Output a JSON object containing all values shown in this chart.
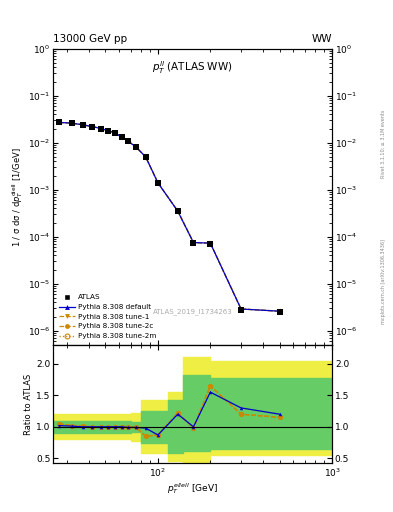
{
  "title_top": "13000 GeV pp",
  "title_right": "WW",
  "plot_title": "$p_T^{ll}$ (ATLAS WW)",
  "xlabel": "$p_T^{ellell}$ [GeV]",
  "ylabel_main": "1 / σ dσ / d$p_T^{\\mathrm{diell}}$ [1/GeV]",
  "ylabel_ratio": "Ratio to ATLAS",
  "watermark": "ATLAS_2019_I1734263",
  "right_label": "Rivet 3.1.10; ≥ 3.1M events",
  "right_label2": "mcplots.cern.ch [arXiv:1306.3436]",
  "xlim": [
    25,
    1000
  ],
  "ylim_main": [
    5e-07,
    1.0
  ],
  "ylim_ratio": [
    0.42,
    2.3
  ],
  "ratio_yticks": [
    0.5,
    1.0,
    1.5,
    2.0
  ],
  "atlas_x": [
    27,
    32,
    37,
    42,
    47,
    52,
    57,
    62,
    67,
    75,
    85,
    100,
    130,
    160,
    200,
    300,
    500
  ],
  "atlas_y": [
    0.027,
    0.026,
    0.024,
    0.022,
    0.02,
    0.018,
    0.016,
    0.013,
    0.011,
    0.008,
    0.005,
    0.0014,
    0.00035,
    7.5e-05,
    7e-05,
    2.8e-06,
    2.5e-06
  ],
  "py_x": [
    27,
    32,
    37,
    42,
    47,
    52,
    57,
    62,
    67,
    75,
    85,
    100,
    130,
    160,
    200,
    300,
    500
  ],
  "py_default_y": [
    0.027,
    0.026,
    0.024,
    0.022,
    0.02,
    0.018,
    0.016,
    0.013,
    0.011,
    0.008,
    0.005,
    0.0014,
    0.00035,
    7.5e-05,
    7.3e-05,
    2.9e-06,
    2.6e-06
  ],
  "py_tune1_y": [
    0.027,
    0.026,
    0.024,
    0.022,
    0.02,
    0.018,
    0.016,
    0.013,
    0.011,
    0.008,
    0.005,
    0.0014,
    0.00035,
    7.5e-05,
    7.3e-05,
    2.9e-06,
    2.6e-06
  ],
  "py_tune2c_y": [
    0.027,
    0.026,
    0.024,
    0.022,
    0.02,
    0.018,
    0.016,
    0.013,
    0.011,
    0.008,
    0.005,
    0.0014,
    0.00035,
    7.5e-05,
    7.3e-05,
    2.9e-06,
    2.6e-06
  ],
  "py_tune2m_y": [
    0.027,
    0.026,
    0.024,
    0.022,
    0.02,
    0.018,
    0.016,
    0.013,
    0.011,
    0.008,
    0.005,
    0.0014,
    0.00035,
    7.5e-05,
    7.3e-05,
    2.9e-06,
    2.6e-06
  ],
  "ratio_default": [
    1.02,
    1.01,
    1.0,
    1.0,
    1.0,
    1.0,
    1.0,
    1.0,
    0.99,
    0.99,
    0.98,
    0.87,
    1.2,
    1.0,
    1.55,
    1.3,
    1.2
  ],
  "ratio_tune1": [
    1.05,
    1.02,
    1.01,
    1.0,
    1.0,
    1.0,
    1.0,
    1.0,
    0.99,
    0.99,
    0.85,
    0.87,
    1.22,
    0.98,
    1.65,
    1.2,
    1.15
  ],
  "ratio_tune2c": [
    1.05,
    1.02,
    1.01,
    1.0,
    1.0,
    1.0,
    1.0,
    1.0,
    0.99,
    0.99,
    0.85,
    0.87,
    1.22,
    0.98,
    1.65,
    1.2,
    1.15
  ],
  "ratio_tune2m": [
    1.05,
    1.02,
    1.01,
    1.0,
    1.0,
    1.0,
    1.0,
    1.0,
    0.99,
    0.99,
    0.85,
    0.87,
    1.22,
    0.98,
    1.65,
    1.2,
    1.15
  ],
  "band_x": [
    25,
    60,
    70,
    80,
    115,
    140,
    200,
    350,
    1000
  ],
  "band_yellow_lo": [
    0.8,
    0.8,
    0.78,
    0.58,
    0.45,
    0.42,
    0.55,
    0.55,
    0.55
  ],
  "band_yellow_hi": [
    1.2,
    1.2,
    1.22,
    1.42,
    1.55,
    2.1,
    2.05,
    2.05,
    2.05
  ],
  "band_green_lo": [
    0.9,
    0.9,
    0.92,
    0.75,
    0.58,
    0.62,
    0.65,
    0.65,
    0.65
  ],
  "band_green_hi": [
    1.1,
    1.1,
    1.08,
    1.25,
    1.42,
    1.82,
    1.78,
    1.78,
    1.78
  ],
  "color_default": "#0000cc",
  "color_tune1": "#cc8800",
  "color_tune2c": "#cc8800",
  "color_tune2m": "#cc8800",
  "color_atlas": "#000000",
  "color_green": "#66cc66",
  "color_yellow": "#eeee44"
}
